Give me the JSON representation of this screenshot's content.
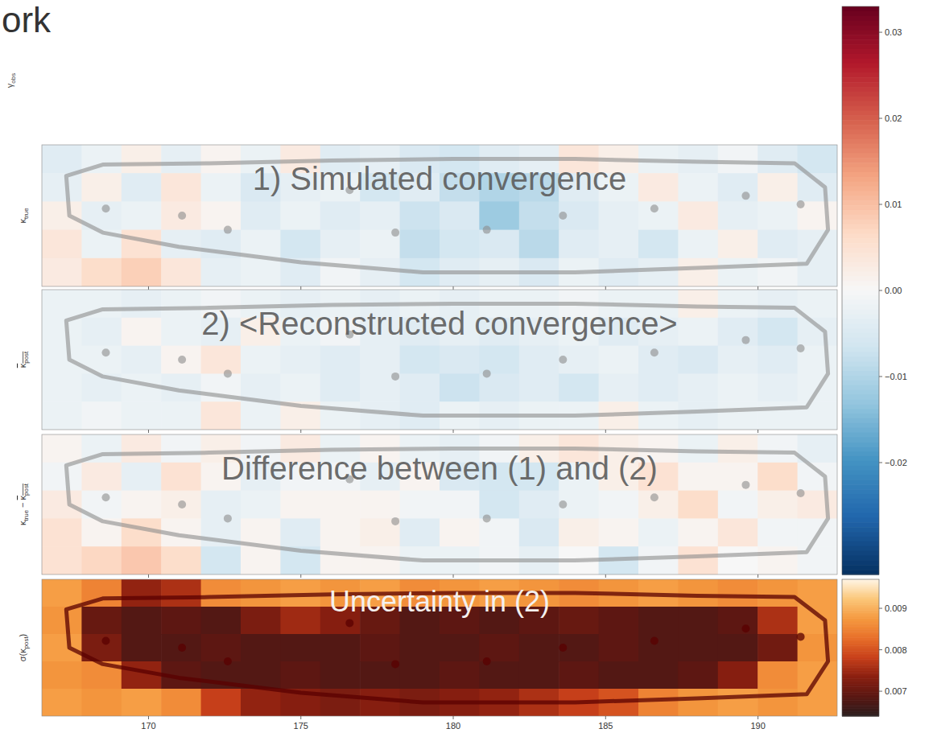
{
  "header": {
    "title": "ork"
  },
  "hidden_panel": {
    "ylabel": [
      {
        "t": "γ",
        "sub": "obs"
      }
    ]
  },
  "chart_data": [
    {
      "type": "heatmap",
      "annotation": "1) Simulated convergence",
      "ylabel": [
        {
          "t": "κ",
          "sub": "true"
        }
      ],
      "xlim": [
        166.5,
        192.6
      ],
      "xticks": [
        170,
        175,
        180,
        185,
        190
      ],
      "tick_labels": false,
      "color": "RdBu_r",
      "clim": [
        -0.033,
        0.033
      ],
      "colorbar": {
        "range": [
          -0.033,
          0.033
        ],
        "ticks": [
          {
            "value": -0.02,
            "label": "−0.02"
          },
          {
            "value": -0.01,
            "label": "−0.01"
          },
          {
            "value": 0,
            "label": "0.00"
          },
          0.01,
          0.02,
          0.03
        ]
      },
      "cells": [
        [
          -0.004,
          -0.002,
          0.002,
          -0.003,
          0.001,
          -0.002,
          0.003,
          -0.004,
          -0.003,
          -0.005,
          -0.006,
          -0.004,
          -0.003,
          0.004,
          0.002,
          -0.002,
          -0.003,
          -0.001,
          -0.004,
          -0.006
        ],
        [
          -0.003,
          0.002,
          -0.004,
          0.004,
          -0.002,
          -0.005,
          -0.003,
          -0.002,
          -0.006,
          -0.004,
          -0.008,
          -0.01,
          -0.009,
          -0.004,
          -0.002,
          0.003,
          -0.002,
          -0.004,
          0.002,
          -0.004
        ],
        [
          0.002,
          -0.003,
          -0.002,
          0.003,
          0.001,
          -0.004,
          -0.002,
          -0.004,
          -0.003,
          -0.007,
          -0.005,
          -0.012,
          -0.008,
          -0.005,
          -0.003,
          -0.002,
          0.003,
          -0.003,
          -0.002,
          0.001
        ],
        [
          0.004,
          -0.002,
          0.005,
          -0.003,
          -0.004,
          -0.002,
          -0.006,
          -0.003,
          -0.002,
          -0.008,
          -0.006,
          -0.005,
          -0.009,
          -0.004,
          -0.003,
          -0.006,
          -0.002,
          0.002,
          -0.004,
          -0.003
        ],
        [
          0.003,
          0.006,
          0.008,
          0.004,
          -0.003,
          -0.002,
          -0.004,
          -0.001,
          -0.003,
          -0.006,
          -0.004,
          -0.003,
          -0.005,
          -0.002,
          -0.004,
          -0.003,
          0.002,
          -0.002,
          -0.001,
          -0.003
        ]
      ]
    },
    {
      "type": "heatmap",
      "annotation": "2) <Reconstructed convergence>",
      "ylabel": [
        {
          "t": "κ",
          "sub": "post",
          "over": true
        }
      ],
      "xlim": [
        166.5,
        192.6
      ],
      "xticks": [
        170,
        175,
        180,
        185,
        190
      ],
      "tick_labels": false,
      "color": "RdBu_r",
      "clim": [
        -0.033,
        0.033
      ],
      "cells": [
        [
          -0.002,
          -0.002,
          -0.003,
          -0.002,
          -0.001,
          -0.002,
          -0.003,
          -0.002,
          -0.003,
          -0.002,
          -0.003,
          -0.002,
          -0.002,
          -0.001,
          -0.002,
          -0.002,
          0.002,
          -0.002,
          -0.003,
          -0.002
        ],
        [
          -0.002,
          -0.003,
          0.001,
          -0.002,
          -0.003,
          0.002,
          -0.002,
          -0.001,
          -0.003,
          -0.004,
          -0.003,
          -0.004,
          -0.003,
          -0.002,
          -0.004,
          -0.003,
          -0.002,
          -0.004,
          -0.006,
          -0.003
        ],
        [
          -0.002,
          -0.002,
          -0.003,
          0.001,
          0.004,
          -0.002,
          -0.003,
          -0.004,
          -0.003,
          -0.006,
          -0.005,
          -0.006,
          -0.004,
          -0.003,
          -0.002,
          -0.004,
          -0.005,
          -0.003,
          -0.004,
          -0.002
        ],
        [
          -0.002,
          -0.003,
          -0.002,
          -0.003,
          -0.001,
          -0.003,
          -0.002,
          -0.004,
          -0.003,
          -0.004,
          -0.007,
          -0.005,
          -0.004,
          -0.006,
          -0.003,
          -0.004,
          -0.003,
          -0.002,
          -0.003,
          -0.002
        ],
        [
          -0.002,
          -0.001,
          -0.002,
          -0.002,
          0.004,
          -0.002,
          0.002,
          -0.002,
          -0.003,
          -0.004,
          -0.002,
          -0.003,
          -0.002,
          -0.002,
          0.002,
          -0.002,
          -0.003,
          -0.002,
          -0.002,
          -0.002
        ]
      ]
    },
    {
      "type": "heatmap",
      "annotation": "Difference between (1) and (2)",
      "ylabel": [
        {
          "t": "κ",
          "sub": "true"
        },
        {
          "t": " − "
        },
        {
          "t": "κ",
          "sub": "post",
          "over": true
        }
      ],
      "xlim": [
        166.5,
        192.6
      ],
      "xticks": [
        170,
        175,
        180,
        185,
        190
      ],
      "tick_labels": false,
      "color": "RdBu_r",
      "clim": [
        -0.033,
        0.033
      ],
      "cells": [
        [
          0.001,
          -0.002,
          0.003,
          -0.001,
          0.002,
          -0.001,
          0.003,
          -0.002,
          0.001,
          -0.002,
          -0.003,
          -0.001,
          0.002,
          0.004,
          0.002,
          0.001,
          -0.002,
          0.002,
          -0.001,
          -0.003
        ],
        [
          -0.001,
          0.003,
          -0.003,
          0.005,
          0.001,
          -0.003,
          -0.001,
          -0.001,
          -0.003,
          0.001,
          -0.005,
          -0.006,
          -0.006,
          -0.002,
          0.002,
          0.005,
          0.001,
          0.001,
          0.006,
          -0.001
        ],
        [
          0.003,
          -0.001,
          0.001,
          0.002,
          -0.003,
          -0.002,
          0.001,
          0.001,
          0.001,
          -0.001,
          -0.001,
          -0.006,
          -0.004,
          -0.002,
          -0.001,
          0.002,
          0.006,
          -0.001,
          0.002,
          0.003
        ],
        [
          0.005,
          0.001,
          0.006,
          0.001,
          -0.003,
          0.001,
          -0.004,
          0.001,
          0.002,
          -0.004,
          0.001,
          -0.001,
          -0.005,
          0.002,
          0.001,
          -0.002,
          0.001,
          0.004,
          -0.001,
          -0.001
        ],
        [
          0.005,
          0.007,
          0.009,
          0.006,
          -0.006,
          0.001,
          -0.006,
          0.001,
          0.001,
          -0.002,
          -0.002,
          -0.001,
          -0.003,
          0.0,
          -0.006,
          -0.001,
          0.005,
          0.0,
          0.001,
          -0.001
        ]
      ]
    },
    {
      "type": "heatmap",
      "annotation": "Uncertainty in (2)",
      "ylabel": [
        {
          "t": "σ(κ",
          "sub": "post"
        },
        {
          "t": ")"
        }
      ],
      "xlim": [
        166.5,
        192.6
      ],
      "xticks": [
        170,
        175,
        180,
        185,
        190
      ],
      "tick_labels": "x",
      "color": "afmhot",
      "clim": [
        0.0064,
        0.0097
      ],
      "colorbar": {
        "range": [
          0.0064,
          0.0097
        ],
        "ticks": [
          0.007,
          0.008,
          0.009
        ]
      },
      "cells": [
        [
          0.0088,
          0.0085,
          0.0074,
          0.0076,
          0.0086,
          0.0087,
          0.0088,
          0.0087,
          0.0088,
          0.0086,
          0.0087,
          0.0088,
          0.0087,
          0.0086,
          0.0087,
          0.0088,
          0.0087,
          0.0086,
          0.0087,
          0.0088
        ],
        [
          0.0087,
          0.007,
          0.0068,
          0.0069,
          0.0068,
          0.0072,
          0.0075,
          0.0073,
          0.007,
          0.0068,
          0.0069,
          0.0068,
          0.0069,
          0.007,
          0.0069,
          0.0068,
          0.0068,
          0.0069,
          0.0076,
          0.0088
        ],
        [
          0.0088,
          0.0072,
          0.0068,
          0.0068,
          0.0069,
          0.0068,
          0.0068,
          0.0068,
          0.0069,
          0.0068,
          0.0068,
          0.0069,
          0.0068,
          0.0068,
          0.0069,
          0.0068,
          0.0068,
          0.0068,
          0.0071,
          0.0087
        ],
        [
          0.0087,
          0.0086,
          0.0074,
          0.0069,
          0.0068,
          0.0068,
          0.0069,
          0.0068,
          0.0068,
          0.0068,
          0.0069,
          0.0068,
          0.0068,
          0.0069,
          0.0068,
          0.0068,
          0.0069,
          0.0073,
          0.0086,
          0.0088
        ],
        [
          0.0088,
          0.0087,
          0.0088,
          0.0086,
          0.0078,
          0.0074,
          0.0073,
          0.0072,
          0.0073,
          0.0072,
          0.0073,
          0.0074,
          0.0076,
          0.0078,
          0.008,
          0.0085,
          0.0087,
          0.0088,
          0.0087,
          0.0088
        ]
      ]
    }
  ]
}
